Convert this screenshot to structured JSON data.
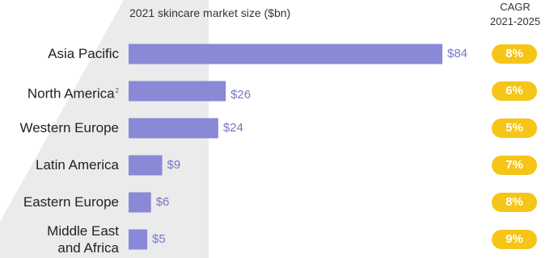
{
  "header": {
    "axis_title": "2021 skincare market size ($bn)",
    "cagr_title_line1": "CAGR",
    "cagr_title_line2": "2021-2025"
  },
  "colors": {
    "bar": "#8989d8",
    "value_text": "#7575c6",
    "badge": "#f5c518",
    "band": "#ebebeb"
  },
  "chart_data": {
    "type": "bar",
    "orientation": "horizontal",
    "title": "2021 skincare market size ($bn)",
    "categories": [
      "Asia Pacific",
      "North America",
      "Western Europe",
      "Latin America",
      "Eastern Europe",
      "Middle East and Africa"
    ],
    "category_display": [
      {
        "line1": "Asia Pacific",
        "line2": "",
        "sup": ""
      },
      {
        "line1": "North America",
        "line2": "",
        "sup": "2"
      },
      {
        "line1": "Western Europe",
        "line2": "",
        "sup": ""
      },
      {
        "line1": "Latin America",
        "line2": "",
        "sup": ""
      },
      {
        "line1": "Eastern Europe",
        "line2": "",
        "sup": ""
      },
      {
        "line1": "Middle East",
        "line2": "and Africa",
        "sup": ""
      }
    ],
    "values": [
      84,
      26,
      24,
      9,
      6,
      5
    ],
    "value_labels": [
      "$84",
      "$26",
      "$24",
      "$9",
      "$6",
      "$5"
    ],
    "cagr_labels": [
      "8%",
      "6%",
      "5%",
      "7%",
      "8%",
      "9%"
    ],
    "xlim": [
      0,
      84
    ],
    "grid": false,
    "legend": "none"
  }
}
